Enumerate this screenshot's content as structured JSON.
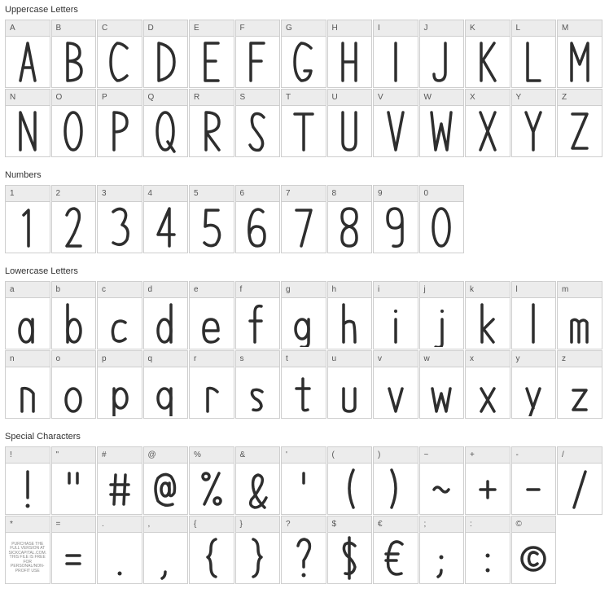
{
  "sections": {
    "uppercase": {
      "title": "Uppercase Letters",
      "cells": [
        {
          "label": "A",
          "glyph": "A"
        },
        {
          "label": "B",
          "glyph": "B"
        },
        {
          "label": "C",
          "glyph": "C"
        },
        {
          "label": "D",
          "glyph": "D"
        },
        {
          "label": "E",
          "glyph": "E"
        },
        {
          "label": "F",
          "glyph": "F"
        },
        {
          "label": "G",
          "glyph": "G"
        },
        {
          "label": "H",
          "glyph": "H"
        },
        {
          "label": "I",
          "glyph": "I"
        },
        {
          "label": "J",
          "glyph": "J"
        },
        {
          "label": "K",
          "glyph": "K"
        },
        {
          "label": "L",
          "glyph": "L"
        },
        {
          "label": "M",
          "glyph": "M"
        },
        {
          "label": "N",
          "glyph": "N"
        },
        {
          "label": "O",
          "glyph": "O"
        },
        {
          "label": "P",
          "glyph": "P"
        },
        {
          "label": "Q",
          "glyph": "Q"
        },
        {
          "label": "R",
          "glyph": "R"
        },
        {
          "label": "S",
          "glyph": "S"
        },
        {
          "label": "T",
          "glyph": "T"
        },
        {
          "label": "U",
          "glyph": "U"
        },
        {
          "label": "V",
          "glyph": "V"
        },
        {
          "label": "W",
          "glyph": "W"
        },
        {
          "label": "X",
          "glyph": "X"
        },
        {
          "label": "Y",
          "glyph": "Y"
        },
        {
          "label": "Z",
          "glyph": "Z"
        }
      ]
    },
    "numbers": {
      "title": "Numbers",
      "cells": [
        {
          "label": "1",
          "glyph": "1"
        },
        {
          "label": "2",
          "glyph": "2"
        },
        {
          "label": "3",
          "glyph": "3"
        },
        {
          "label": "4",
          "glyph": "4"
        },
        {
          "label": "5",
          "glyph": "5"
        },
        {
          "label": "6",
          "glyph": "6"
        },
        {
          "label": "7",
          "glyph": "7"
        },
        {
          "label": "8",
          "glyph": "8"
        },
        {
          "label": "9",
          "glyph": "9"
        },
        {
          "label": "0",
          "glyph": "0"
        }
      ]
    },
    "lowercase": {
      "title": "Lowercase Letters",
      "cells": [
        {
          "label": "a",
          "glyph": "a"
        },
        {
          "label": "b",
          "glyph": "b"
        },
        {
          "label": "c",
          "glyph": "c"
        },
        {
          "label": "d",
          "glyph": "d"
        },
        {
          "label": "e",
          "glyph": "e"
        },
        {
          "label": "f",
          "glyph": "f"
        },
        {
          "label": "g",
          "glyph": "g"
        },
        {
          "label": "h",
          "glyph": "h"
        },
        {
          "label": "i",
          "glyph": "i"
        },
        {
          "label": "j",
          "glyph": "j"
        },
        {
          "label": "k",
          "glyph": "k"
        },
        {
          "label": "l",
          "glyph": "l"
        },
        {
          "label": "m",
          "glyph": "m"
        },
        {
          "label": "n",
          "glyph": "n"
        },
        {
          "label": "o",
          "glyph": "o"
        },
        {
          "label": "p",
          "glyph": "p"
        },
        {
          "label": "q",
          "glyph": "q"
        },
        {
          "label": "r",
          "glyph": "r"
        },
        {
          "label": "s",
          "glyph": "s"
        },
        {
          "label": "t",
          "glyph": "t"
        },
        {
          "label": "u",
          "glyph": "u"
        },
        {
          "label": "v",
          "glyph": "v"
        },
        {
          "label": "w",
          "glyph": "w"
        },
        {
          "label": "x",
          "glyph": "x"
        },
        {
          "label": "y",
          "glyph": "y"
        },
        {
          "label": "z",
          "glyph": "z"
        }
      ]
    },
    "special": {
      "title": "Special Characters",
      "cells": [
        {
          "label": "!",
          "glyph": "!"
        },
        {
          "label": "\"",
          "glyph": "\""
        },
        {
          "label": "#",
          "glyph": "#"
        },
        {
          "label": "@",
          "glyph": "@"
        },
        {
          "label": "%",
          "glyph": "%"
        },
        {
          "label": "&",
          "glyph": "&"
        },
        {
          "label": "'",
          "glyph": "'"
        },
        {
          "label": "(",
          "glyph": "("
        },
        {
          "label": ")",
          "glyph": ")"
        },
        {
          "label": "~",
          "glyph": "~"
        },
        {
          "label": "+",
          "glyph": "+"
        },
        {
          "label": "-",
          "glyph": "-"
        },
        {
          "label": "/",
          "glyph": "/"
        },
        {
          "label": "*",
          "glyph": "*"
        },
        {
          "label": "=",
          "glyph": "="
        },
        {
          "label": ".",
          "glyph": "."
        },
        {
          "label": ",",
          "glyph": ","
        },
        {
          "label": "{",
          "glyph": "{"
        },
        {
          "label": "}",
          "glyph": "}"
        },
        {
          "label": "?",
          "glyph": "?"
        },
        {
          "label": "$",
          "glyph": "$"
        },
        {
          "label": "€",
          "glyph": "€"
        },
        {
          "label": ";",
          "glyph": ";"
        },
        {
          "label": ":",
          "glyph": ":"
        },
        {
          "label": "©",
          "glyph": "©"
        }
      ]
    }
  },
  "style": {
    "cell_width": 55.5,
    "cell_label_height": 20,
    "cell_glyph_height": 62,
    "label_bg": "#ececec",
    "border_color": "#cecece",
    "glyph_color": "#2e2e2e",
    "label_color": "#555555",
    "title_color": "#333333",
    "title_fontsize": 11,
    "label_fontsize": 10,
    "stroke_width": 3.5,
    "background": "#ffffff",
    "cols_per_row": 13
  },
  "asterisk_note": "PURCHASE THE FULL VERSION AT SICKCAPITAL.COM. THIS FILE IS FREE FOR PERSONAL/NON-PROFIT USE"
}
